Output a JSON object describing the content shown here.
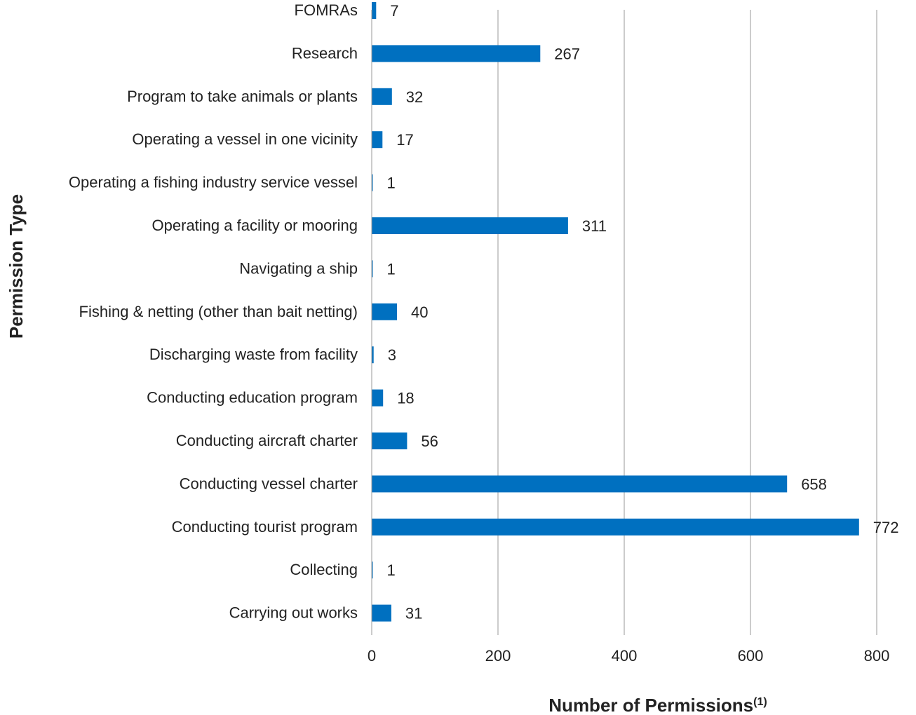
{
  "chart_data": {
    "type": "bar",
    "orientation": "horizontal",
    "xlabel": "Number of Permissions",
    "xlabel_superscript": "(1)",
    "ylabel": "Permission Type",
    "xlim": [
      0,
      800
    ],
    "xticks": [
      0,
      200,
      400,
      600,
      800
    ],
    "grid": "vertical",
    "bar_color": "#0070C0",
    "categories": [
      "FOMRAs",
      "Research",
      "Program to take animals or plants",
      "Operating a vessel in one vicinity",
      "Operating a fishing industry service vessel",
      "Operating a facility or mooring",
      "Navigating a ship",
      "Fishing & netting (other than bait netting)",
      "Discharging waste from facility",
      "Conducting education program",
      "Conducting aircraft charter",
      "Conducting vessel charter",
      "Conducting tourist program",
      "Collecting",
      "Carrying out works"
    ],
    "values": [
      7,
      267,
      32,
      17,
      1,
      311,
      1,
      40,
      3,
      18,
      56,
      658,
      772,
      1,
      31
    ]
  }
}
